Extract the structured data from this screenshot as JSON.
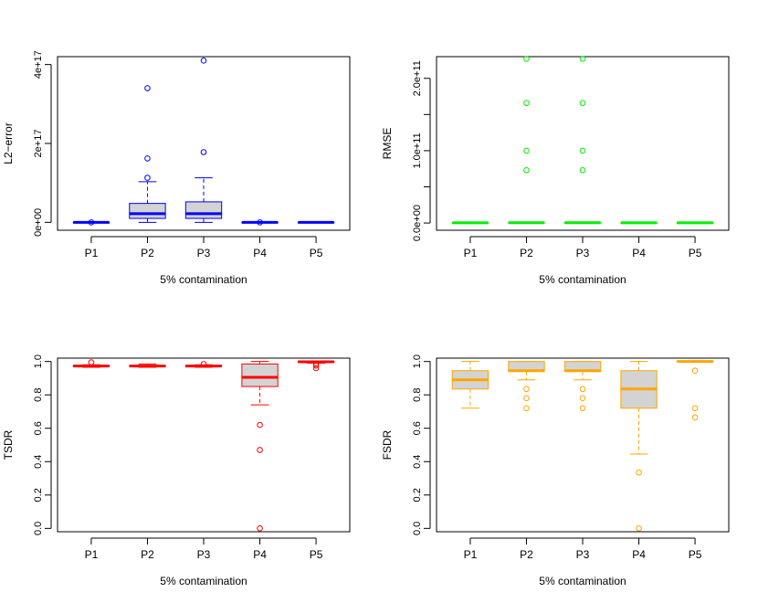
{
  "chart_data": [
    {
      "type": "boxplot",
      "color": "#0000ff",
      "fill": "#d3d3d3",
      "categories": [
        "P1",
        "P2",
        "P3",
        "P4",
        "P5"
      ],
      "xlabel": "5% contamination",
      "ylabel": "L2−error",
      "ylim": [
        -2e+16,
        4.2e+17
      ],
      "yticks": [
        0,
        2e+17,
        4e+17
      ],
      "ytick_labels": [
        "0e+00",
        "2e+17",
        "4e+17"
      ],
      "boxes": [
        {
          "min": 0,
          "q1": 0,
          "median": 0,
          "q3": 0,
          "max": 0,
          "outliers": [
            0
          ]
        },
        {
          "min": 0,
          "q1": 1e+16,
          "median": 2.2e+16,
          "q3": 4.8e+16,
          "max": 1.03e+17,
          "outliers": [
            1.13e+17,
            1.62e+17,
            3.4e+17
          ]
        },
        {
          "min": 0,
          "q1": 1e+16,
          "median": 2.2e+16,
          "q3": 5.2e+16,
          "max": 1.13e+17,
          "outliers": [
            1.78e+17,
            4.1e+17
          ]
        },
        {
          "min": 0,
          "q1": 0,
          "median": 0,
          "q3": 0,
          "max": 0,
          "outliers": [
            0
          ]
        },
        {
          "min": 0,
          "q1": 0,
          "median": 0,
          "q3": 0,
          "max": 0,
          "outliers": []
        }
      ]
    },
    {
      "type": "boxplot",
      "color": "#00ee00",
      "fill": "#d3d3d3",
      "categories": [
        "P1",
        "P2",
        "P3",
        "P4",
        "P5"
      ],
      "xlabel": "5% contamination",
      "ylabel": "RMSE",
      "ylim": [
        -10000000000.0,
        230000000000.0
      ],
      "yticks": [
        0,
        50000000000.0,
        100000000000.0,
        150000000000.0,
        200000000000.0
      ],
      "ytick_labels": [
        "0.0e+00",
        "",
        "1.0e+11",
        "",
        "2.0e+11"
      ],
      "boxes": [
        {
          "min": 0,
          "q1": 0,
          "median": 200000000.0,
          "q3": 400000000.0,
          "max": 600000000.0,
          "outliers": []
        },
        {
          "min": 0,
          "q1": 200000000.0,
          "median": 400000000.0,
          "q3": 600000000.0,
          "max": 800000000.0,
          "outliers": [
            73000000000.0,
            100000000000.0,
            166000000000.0,
            227000000000.0
          ]
        },
        {
          "min": 0,
          "q1": 200000000.0,
          "median": 400000000.0,
          "q3": 600000000.0,
          "max": 800000000.0,
          "outliers": [
            73000000000.0,
            100000000000.0,
            166000000000.0,
            227000000000.0
          ]
        },
        {
          "min": 0,
          "q1": 0,
          "median": 200000000.0,
          "q3": 400000000.0,
          "max": 600000000.0,
          "outliers": []
        },
        {
          "min": 0,
          "q1": 0,
          "median": 200000000.0,
          "q3": 400000000.0,
          "max": 600000000.0,
          "outliers": []
        }
      ]
    },
    {
      "type": "boxplot",
      "color": "#ff0000",
      "fill": "#d3d3d3",
      "categories": [
        "P1",
        "P2",
        "P3",
        "P4",
        "P5"
      ],
      "xlabel": "5% contamination",
      "ylabel": "TSDR",
      "ylim": [
        -0.02,
        1.02
      ],
      "yticks": [
        0,
        0.2,
        0.4,
        0.6,
        0.8,
        1.0
      ],
      "ytick_labels": [
        "0.0",
        "0.2",
        "0.4",
        "0.6",
        "0.8",
        "1.0"
      ],
      "boxes": [
        {
          "min": 0.965,
          "q1": 0.97,
          "median": 0.973,
          "q3": 0.976,
          "max": 0.98,
          "outliers": [
            0.995
          ]
        },
        {
          "min": 0.965,
          "q1": 0.97,
          "median": 0.973,
          "q3": 0.976,
          "max": 0.985,
          "outliers": []
        },
        {
          "min": 0.965,
          "q1": 0.97,
          "median": 0.973,
          "q3": 0.976,
          "max": 0.98,
          "outliers": [
            0.985
          ]
        },
        {
          "min": 0.74,
          "q1": 0.85,
          "median": 0.905,
          "q3": 0.985,
          "max": 1.0,
          "outliers": [
            0.62,
            0.47,
            0.0
          ]
        },
        {
          "min": 0.99,
          "q1": 0.995,
          "median": 0.998,
          "q3": 1.0,
          "max": 1.0,
          "outliers": [
            0.96,
            0.975,
            0.985
          ]
        }
      ]
    },
    {
      "type": "boxplot",
      "color": "#ffa500",
      "fill": "#d3d3d3",
      "categories": [
        "P1",
        "P2",
        "P3",
        "P4",
        "P5"
      ],
      "xlabel": "5% contamination",
      "ylabel": "FSDR",
      "ylim": [
        -0.02,
        1.02
      ],
      "yticks": [
        0,
        0.2,
        0.4,
        0.6,
        0.8,
        1.0
      ],
      "ytick_labels": [
        "0.0",
        "0.2",
        "0.4",
        "0.6",
        "0.8",
        "1.0"
      ],
      "boxes": [
        {
          "min": 0.72,
          "q1": 0.835,
          "median": 0.89,
          "q3": 0.945,
          "max": 1.0,
          "outliers": []
        },
        {
          "min": 0.89,
          "q1": 0.94,
          "median": 0.945,
          "q3": 1.0,
          "max": 1.0,
          "outliers": [
            0.72,
            0.78,
            0.835
          ]
        },
        {
          "min": 0.89,
          "q1": 0.94,
          "median": 0.945,
          "q3": 1.0,
          "max": 1.0,
          "outliers": [
            0.72,
            0.78,
            0.835
          ]
        },
        {
          "min": 0.445,
          "q1": 0.72,
          "median": 0.835,
          "q3": 0.945,
          "max": 1.0,
          "outliers": [
            0.335,
            0.0
          ]
        },
        {
          "min": 1.0,
          "q1": 1.0,
          "median": 1.0,
          "q3": 1.0,
          "max": 1.0,
          "outliers": [
            0.945,
            0.72,
            0.665
          ]
        }
      ]
    }
  ]
}
